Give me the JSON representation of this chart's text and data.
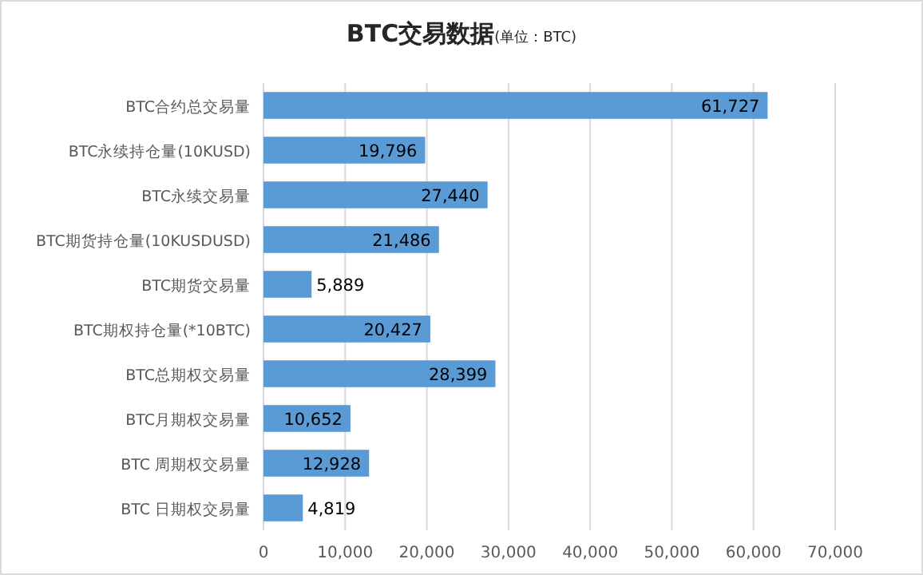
{
  "chart_data": {
    "type": "bar",
    "orientation": "horizontal",
    "title": "BTC交易数据",
    "subtitle": "(单位：BTC)",
    "categories": [
      "BTC合约总交易量",
      "BTC永续持仓量(10KUSD)",
      "BTC永续交易量",
      "BTC期货持仓量(10KUSDUSD)",
      "BTC期货交易量",
      "BTC期权持仓量(*10BTC)",
      "BTC总期权交易量",
      "BTC月期权交易量",
      "BTC  周期权交易量",
      "BTC  日期权交易量"
    ],
    "values": [
      61727,
      19796,
      27440,
      21486,
      5889,
      20427,
      28399,
      10652,
      12928,
      4819
    ],
    "value_labels": [
      "61,727",
      "19,796",
      "27,440",
      "21,486",
      "5,889",
      "20,427",
      "28,399",
      "10,652",
      "12,928",
      "4,819"
    ],
    "color": "#5b9bd5",
    "grid": "x",
    "xlim": [
      0,
      70000
    ],
    "xticks": [
      {
        "value": 0,
        "label": "0"
      },
      {
        "value": 10000,
        "label": "10,000"
      },
      {
        "value": 20000,
        "label": "20,000"
      },
      {
        "value": 30000,
        "label": "30,000"
      },
      {
        "value": 40000,
        "label": "40,000"
      },
      {
        "value": 50000,
        "label": "50,000"
      },
      {
        "value": 60000,
        "label": "60,000"
      },
      {
        "value": 70000,
        "label": "70,000"
      }
    ]
  }
}
